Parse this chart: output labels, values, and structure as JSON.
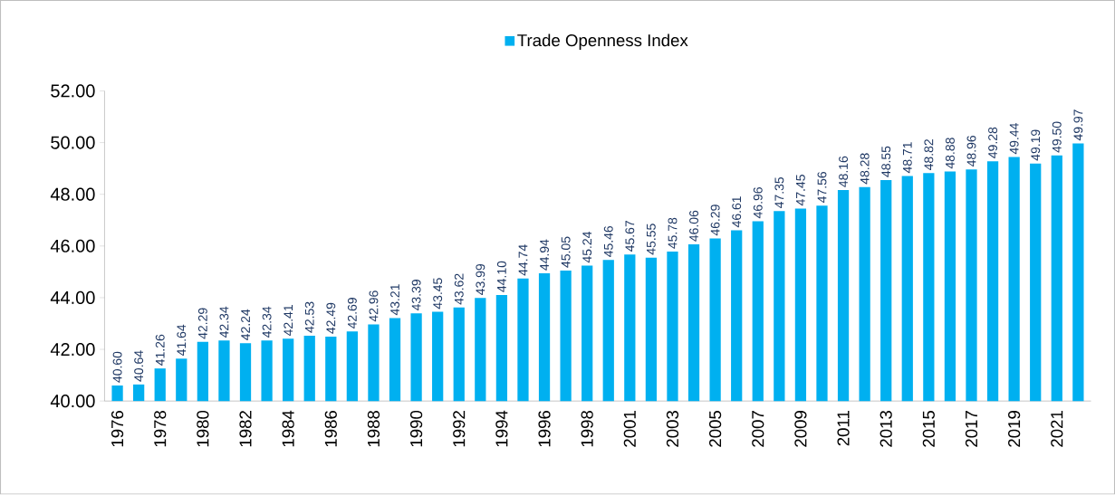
{
  "chart_data": {
    "type": "bar",
    "categories": [
      "1976",
      null,
      "1978",
      null,
      "1980",
      null,
      "1982",
      null,
      "1984",
      null,
      "1986",
      null,
      "1988",
      null,
      "1990",
      null,
      "1992",
      null,
      "1994",
      null,
      "1996",
      null,
      "1998",
      null,
      "2001",
      null,
      "2003",
      null,
      "2005",
      null,
      "2007",
      null,
      "2009",
      null,
      "2011",
      null,
      "2013",
      null,
      "2015",
      null,
      "2017",
      null,
      "2019",
      null,
      "2021",
      null
    ],
    "series": [
      {
        "name": "Trade Openness Index",
        "color": "#00b0f0",
        "values": [
          40.6,
          40.64,
          41.26,
          41.64,
          42.29,
          42.34,
          42.24,
          42.34,
          42.41,
          42.53,
          42.49,
          42.69,
          42.96,
          43.21,
          43.39,
          43.45,
          43.62,
          43.99,
          44.1,
          44.74,
          44.94,
          45.05,
          45.24,
          45.46,
          45.67,
          45.55,
          45.78,
          46.06,
          46.29,
          46.61,
          46.96,
          47.35,
          47.45,
          47.56,
          48.16,
          48.28,
          48.55,
          48.71,
          48.82,
          48.88,
          48.96,
          49.28,
          49.44,
          49.19,
          49.5,
          49.97
        ],
        "value_labels": [
          "40.60",
          "40.64",
          "41.26",
          "41.64",
          "42.29",
          "42.34",
          "42.24",
          "42.34",
          "42.41",
          "42.53",
          "42.49",
          "42.69",
          "42.96",
          "43.21",
          "43.39",
          "43.45",
          "43.62",
          "43.99",
          "44.10",
          "44.74",
          "44.94",
          "45.05",
          "45.24",
          "45.46",
          "45.67",
          "45.55",
          "45.78",
          "46.06",
          "46.29",
          "46.61",
          "46.96",
          "47.35",
          "47.45",
          "47.56",
          "48.16",
          "48.28",
          "48.55",
          "48.71",
          "48.82",
          "48.88",
          "48.96",
          "49.28",
          "49.44",
          "49.19",
          "49.50",
          "49.97"
        ]
      }
    ],
    "ylim": [
      40,
      52
    ],
    "yticks": [
      {
        "value": 40,
        "label": "40.00"
      },
      {
        "value": 42,
        "label": "42.00"
      },
      {
        "value": 44,
        "label": "44.00"
      },
      {
        "value": 46,
        "label": "46.00"
      },
      {
        "value": 48,
        "label": "48.00"
      },
      {
        "value": 50,
        "label": "50.00"
      },
      {
        "value": 52,
        "label": "52.00"
      }
    ],
    "grid": false,
    "legend": "top"
  }
}
